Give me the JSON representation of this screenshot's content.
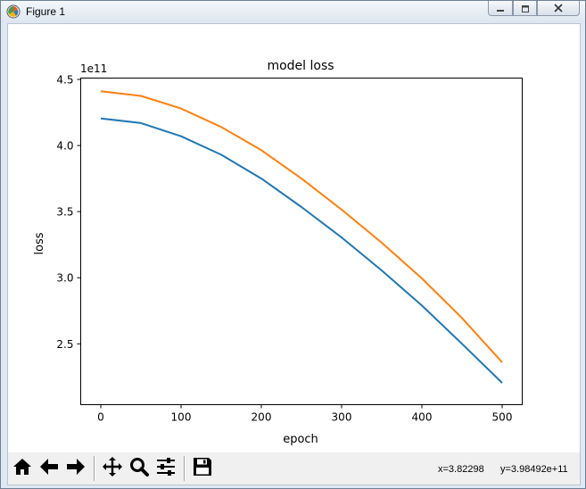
{
  "window": {
    "title": "Figure 1",
    "app_icon": "matplotlib-figure-icon",
    "controls": [
      "minimize-icon",
      "maximize-icon",
      "close-icon"
    ]
  },
  "toolbar": {
    "buttons": [
      "home-icon",
      "back-arrow-icon",
      "forward-arrow-icon",
      "pan-move-icon",
      "zoom-magnifier-icon",
      "subplot-config-icon",
      "save-floppy-icon"
    ],
    "coord_x": "x=3.82298",
    "coord_y": "y=3.98492e+11"
  },
  "chart_data": {
    "type": "line",
    "title": "model loss",
    "xlabel": "epoch",
    "ylabel": "loss",
    "y_offset_label": "1e11",
    "xlim": [
      -25,
      525
    ],
    "ylim": [
      2.04,
      4.51
    ],
    "xticks": [
      0,
      100,
      200,
      300,
      400,
      500
    ],
    "xtick_labels": [
      "0",
      "100",
      "200",
      "300",
      "400",
      "500"
    ],
    "yticks": [
      2.5,
      3.0,
      3.5,
      4.0,
      4.5
    ],
    "ytick_labels": [
      "2.5",
      "3.0",
      "3.5",
      "4.0",
      "4.5"
    ],
    "grid": false,
    "legend": false,
    "series": [
      {
        "color": "#1f77b4",
        "x": [
          0,
          50,
          100,
          150,
          200,
          250,
          300,
          350,
          400,
          450,
          500
        ],
        "values": [
          4.205,
          4.17,
          4.07,
          3.93,
          3.75,
          3.535,
          3.305,
          3.055,
          2.79,
          2.5,
          2.205
        ]
      },
      {
        "color": "#ff7f0e",
        "x": [
          0,
          50,
          100,
          150,
          200,
          250,
          300,
          350,
          400,
          450,
          500
        ],
        "values": [
          4.41,
          4.375,
          4.28,
          4.14,
          3.965,
          3.75,
          3.515,
          3.265,
          2.995,
          2.695,
          2.36
        ]
      }
    ]
  }
}
